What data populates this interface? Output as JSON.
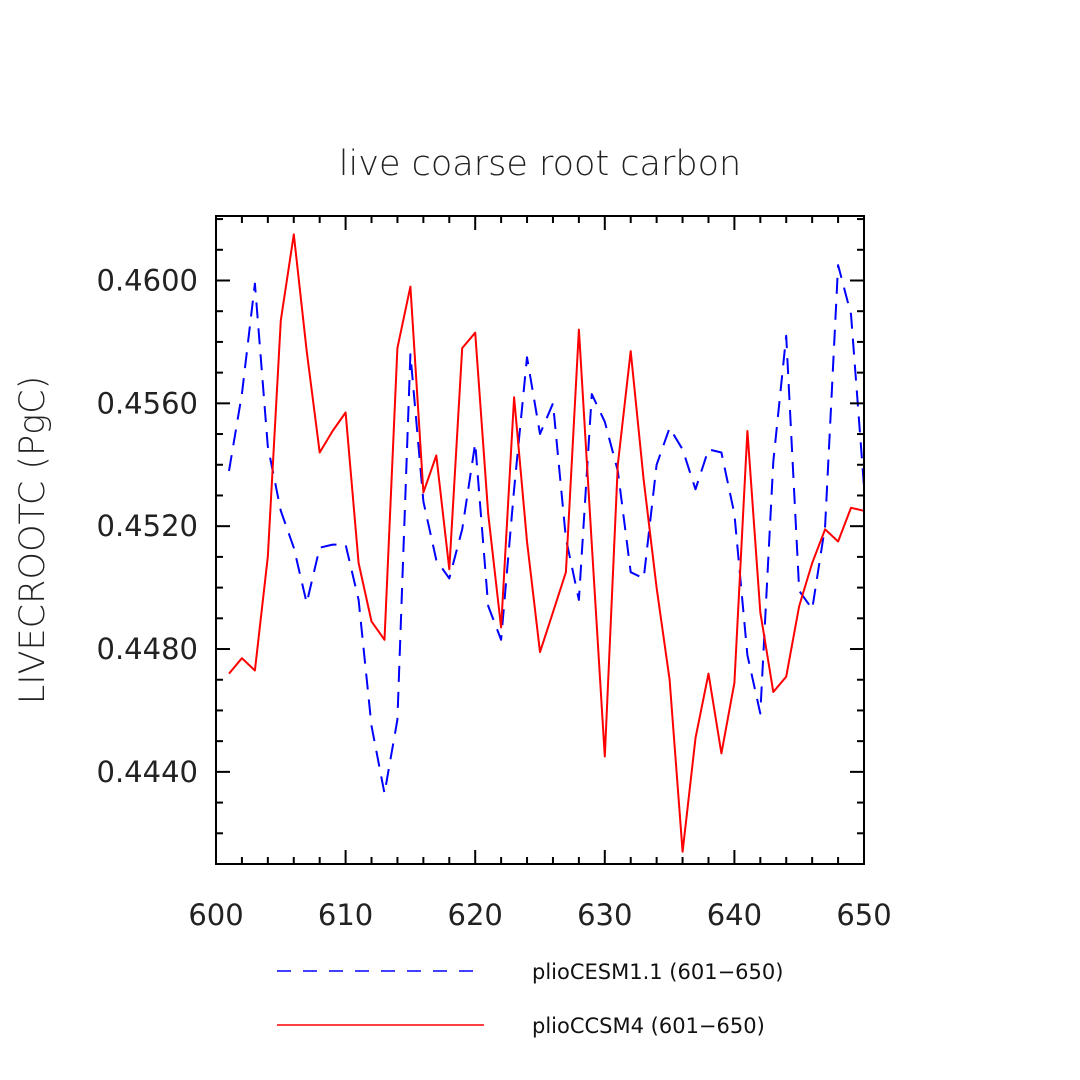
{
  "chart_data": {
    "type": "line",
    "title": "live coarse root carbon",
    "ylabel": "LIVECROOTC  (PgC)",
    "xlabel": "",
    "xlim": [
      600,
      650
    ],
    "ylim": [
      0.441,
      0.4621
    ],
    "x_ticks": [
      "600",
      "610",
      "620",
      "630",
      "640",
      "650"
    ],
    "y_ticks": [
      "0.4440",
      "0.4480",
      "0.4520",
      "0.4560",
      "0.4600"
    ],
    "grid": false,
    "legend_position": "bottom",
    "series": [
      {
        "name": "plioCESM1.1 (601−650)",
        "color": "#0000ff",
        "style": "dashed",
        "x": [
          601,
          602,
          603,
          604,
          605,
          606,
          607,
          608,
          609,
          610,
          611,
          612,
          613,
          614,
          615,
          616,
          617,
          618,
          619,
          620,
          621,
          622,
          623,
          624,
          625,
          626,
          627,
          628,
          629,
          630,
          631,
          632,
          633,
          634,
          635,
          636,
          637,
          638,
          639,
          640,
          641,
          642,
          643,
          644,
          645,
          646,
          647,
          648,
          649,
          650
        ],
        "values": [
          0.4538,
          0.4563,
          0.4599,
          0.4546,
          0.4525,
          0.4513,
          0.4495,
          0.4513,
          0.4514,
          0.4514,
          0.4496,
          0.4455,
          0.4433,
          0.4457,
          0.4576,
          0.4528,
          0.4509,
          0.4503,
          0.4519,
          0.4547,
          0.4494,
          0.4483,
          0.4532,
          0.4575,
          0.455,
          0.456,
          0.4516,
          0.4496,
          0.4563,
          0.4554,
          0.4538,
          0.4505,
          0.4503,
          0.454,
          0.4552,
          0.4545,
          0.4532,
          0.4545,
          0.4544,
          0.4524,
          0.4478,
          0.4459,
          0.4541,
          0.4582,
          0.4499,
          0.4493,
          0.452,
          0.4605,
          0.4589,
          0.4533
        ]
      },
      {
        "name": "plioCCSM4 (601−650)",
        "color": "#ff0000",
        "style": "solid",
        "x": [
          601,
          602,
          603,
          604,
          605,
          606,
          607,
          608,
          609,
          610,
          611,
          612,
          613,
          614,
          615,
          616,
          617,
          618,
          619,
          620,
          621,
          622,
          623,
          624,
          625,
          626,
          627,
          628,
          629,
          630,
          631,
          632,
          633,
          634,
          635,
          636,
          637,
          638,
          639,
          640,
          641,
          642,
          643,
          644,
          645,
          646,
          647,
          648,
          649,
          650
        ],
        "values": [
          0.4472,
          0.4477,
          0.4473,
          0.451,
          0.4587,
          0.4615,
          0.4577,
          0.4544,
          0.4551,
          0.4557,
          0.4508,
          0.4489,
          0.4483,
          0.4578,
          0.4598,
          0.4531,
          0.4543,
          0.4506,
          0.4578,
          0.4583,
          0.4524,
          0.4487,
          0.4562,
          0.4515,
          0.4479,
          0.4492,
          0.4505,
          0.4584,
          0.4514,
          0.4445,
          0.454,
          0.4577,
          0.4535,
          0.45,
          0.447,
          0.4414,
          0.4451,
          0.4472,
          0.4446,
          0.4469,
          0.4551,
          0.4492,
          0.4466,
          0.4471,
          0.4494,
          0.4508,
          0.4519,
          0.4515,
          0.4526,
          0.4525
        ]
      }
    ]
  }
}
